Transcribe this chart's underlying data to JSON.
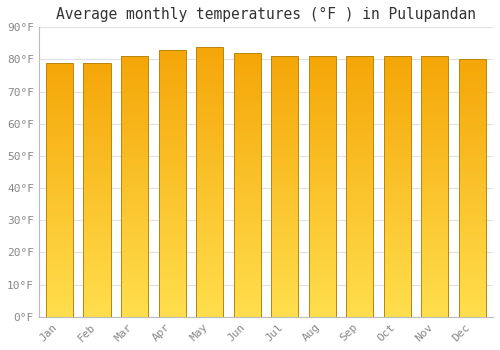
{
  "title": "Average monthly temperatures (°F ) in Pulupandan",
  "months": [
    "Jan",
    "Feb",
    "Mar",
    "Apr",
    "May",
    "Jun",
    "Jul",
    "Aug",
    "Sep",
    "Oct",
    "Nov",
    "Dec"
  ],
  "values": [
    79,
    79,
    81,
    83,
    84,
    82,
    81,
    81,
    81,
    81,
    81,
    80
  ],
  "bar_color_top": "#F5A800",
  "bar_color_bottom": "#FFD84D",
  "ylim": [
    0,
    90
  ],
  "yticks": [
    0,
    10,
    20,
    30,
    40,
    50,
    60,
    70,
    80,
    90
  ],
  "ytick_labels": [
    "0°F",
    "10°F",
    "20°F",
    "30°F",
    "40°F",
    "50°F",
    "60°F",
    "70°F",
    "80°F",
    "90°F"
  ],
  "background_color": "#FFFFFF",
  "grid_color": "#E0E0E0",
  "title_fontsize": 10.5,
  "tick_fontsize": 8,
  "font_family": "monospace",
  "bar_edge_color": "#B8860B",
  "bar_width": 0.72
}
